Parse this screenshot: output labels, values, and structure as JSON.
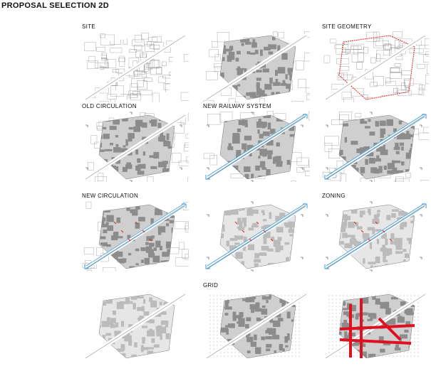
{
  "header": {
    "title": "PROPOSAL SELECTION 2D"
  },
  "labels": [
    "SITE",
    "SITE GEOMETRY",
    "OLD CIRCULATION",
    "NEW RAILWAY SYSTEM",
    "NEW CIRCULATION",
    "ZONING",
    "GRID"
  ]
}
